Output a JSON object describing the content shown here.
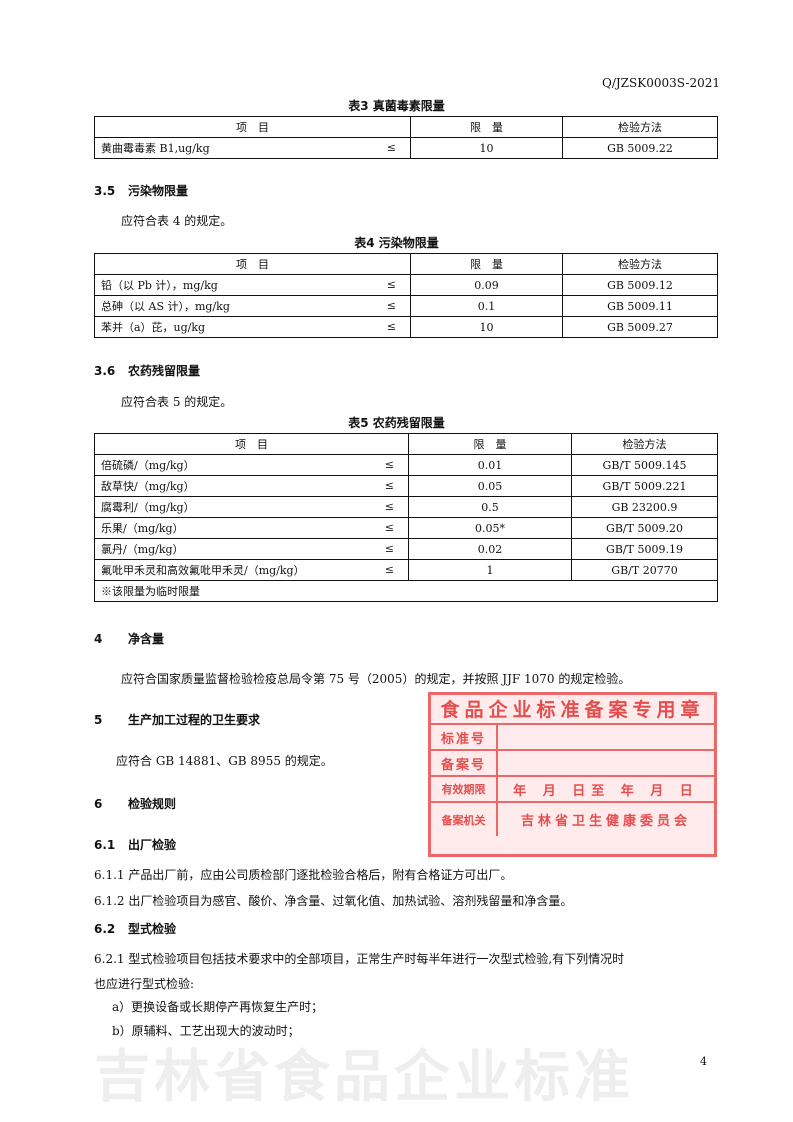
{
  "header": {
    "doc_code": "Q/JZSK0003S-2021"
  },
  "table3": {
    "caption": "表3  真菌毒素限量",
    "headers": [
      "项　目",
      "限　量",
      "检验方法"
    ],
    "rows": [
      {
        "item": "黄曲霉毒素 B1,ug/kg",
        "op": "≤",
        "limit": "10",
        "method": "GB 5009.22"
      }
    ]
  },
  "s35": {
    "title_no": "3.5",
    "title": "污染物限量",
    "text": "应符合表 4 的规定。"
  },
  "table4": {
    "caption": "表4  污染物限量",
    "headers": [
      "项　目",
      "限　量",
      "检验方法"
    ],
    "rows": [
      {
        "item": "铅（以 Pb 计），mg/kg",
        "op": "≤",
        "limit": "0.09",
        "method": "GB 5009.12"
      },
      {
        "item": "总砷（以 AS 计），mg/kg",
        "op": "≤",
        "limit": "0.1",
        "method": "GB 5009.11"
      },
      {
        "item": "苯并（a）芘，ug/kg",
        "op": "≤",
        "limit": "10",
        "method": "GB 5009.27"
      }
    ]
  },
  "s36": {
    "title_no": "3.6",
    "title": "农药残留限量",
    "text": "应符合表 5 的规定。"
  },
  "table5": {
    "caption": "表5  农药残留限量",
    "headers": [
      "项　目",
      "限　量",
      "检验方法"
    ],
    "rows": [
      {
        "item": "倍硫磷/（mg/kg）",
        "op": "≤",
        "limit": "0.01",
        "method": "GB/T 5009.145"
      },
      {
        "item": "敌草快/（mg/kg）",
        "op": "≤",
        "limit": "0.05",
        "method": "GB/T 5009.221"
      },
      {
        "item": "腐霉利/（mg/kg）",
        "op": "≤",
        "limit": "0.5",
        "method": "GB 23200.9"
      },
      {
        "item": "乐果/（mg/kg）",
        "op": "≤",
        "limit": "0.05*",
        "method": "GB/T 5009.20"
      },
      {
        "item": "氯丹/（mg/kg）",
        "op": "≤",
        "limit": "0.02",
        "method": "GB/T 5009.19"
      },
      {
        "item": "氟吡甲禾灵和高效氟吡甲禾灵/（mg/kg）",
        "op": "≤",
        "limit": "1",
        "method": "GB/T 20770"
      }
    ],
    "note": "※该限量为临时限量"
  },
  "s4": {
    "title_no": "4",
    "title": "净含量",
    "text": "应符合国家质量监督检验检疫总局令第 75 号（2005）的规定，并按照 JJF 1070 的规定检验。"
  },
  "s5": {
    "title_no": "5",
    "title": "生产加工过程的卫生要求",
    "text": "应符合 GB 14881、GB 8955 的规定。"
  },
  "s6": {
    "title_no": "6",
    "title": "检验规则"
  },
  "s61": {
    "title_no": "6.1",
    "title": "出厂检验",
    "p1": "6.1.1 产品出厂前，应由公司质检部门逐批检验合格后，附有合格证方可出厂。",
    "p2": "6.1.2 出厂检验项目为感官、酸价、净含量、过氧化值、加热试验、溶剂残留量和净含量。"
  },
  "s62": {
    "title_no": "6.2",
    "title": "型式检验",
    "p1a": "6.2.1 型式检验项目包括技术要求中的全部项目，正常生产时每半年进行一次型式检验,有下列情况时",
    "p1b": "也应进行型式检验:",
    "a": "a）更换设备或长期停产再恢复生产时；",
    "b": "b）原辅料、工艺出现大的波动时；"
  },
  "stamp": {
    "title": "食品企业标准备案专用章",
    "rows": [
      {
        "label": "标准号",
        "value": ""
      },
      {
        "label": "备案号",
        "value": ""
      },
      {
        "label": "有效期限",
        "value": "年 月 日至 年 月 日"
      },
      {
        "label": "备案机关",
        "value": "吉林省卫生健康委员会"
      }
    ]
  },
  "watermark": "吉林省食品企业标准",
  "page_number": "4",
  "colors": {
    "stamp": "#e63c3c",
    "watermark": "#969696"
  }
}
